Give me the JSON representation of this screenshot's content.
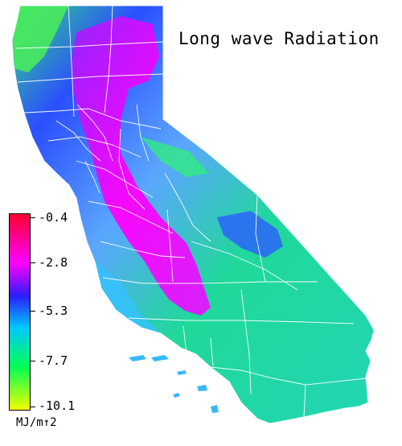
{
  "title": "Long wave Radiation",
  "legend": {
    "units": "MJ/m↑2",
    "ticks": [
      "-0.4",
      "-2.8",
      "-5.3",
      "-7.7",
      "-10.1"
    ],
    "range": [
      -10.1,
      -0.4
    ],
    "colors_high_to_low": [
      "#ff0030",
      "#ff00ff",
      "#2a1dff",
      "#00c8ff",
      "#00ff55",
      "#f0ff00"
    ]
  },
  "map": {
    "region": "California",
    "dark_center_color": "#8a14ff",
    "central_valley_color": "#ff00ff",
    "coast_color": "#42a0ff",
    "desert_color": "#19d8b0",
    "county_line_color": "#ffffff"
  }
}
